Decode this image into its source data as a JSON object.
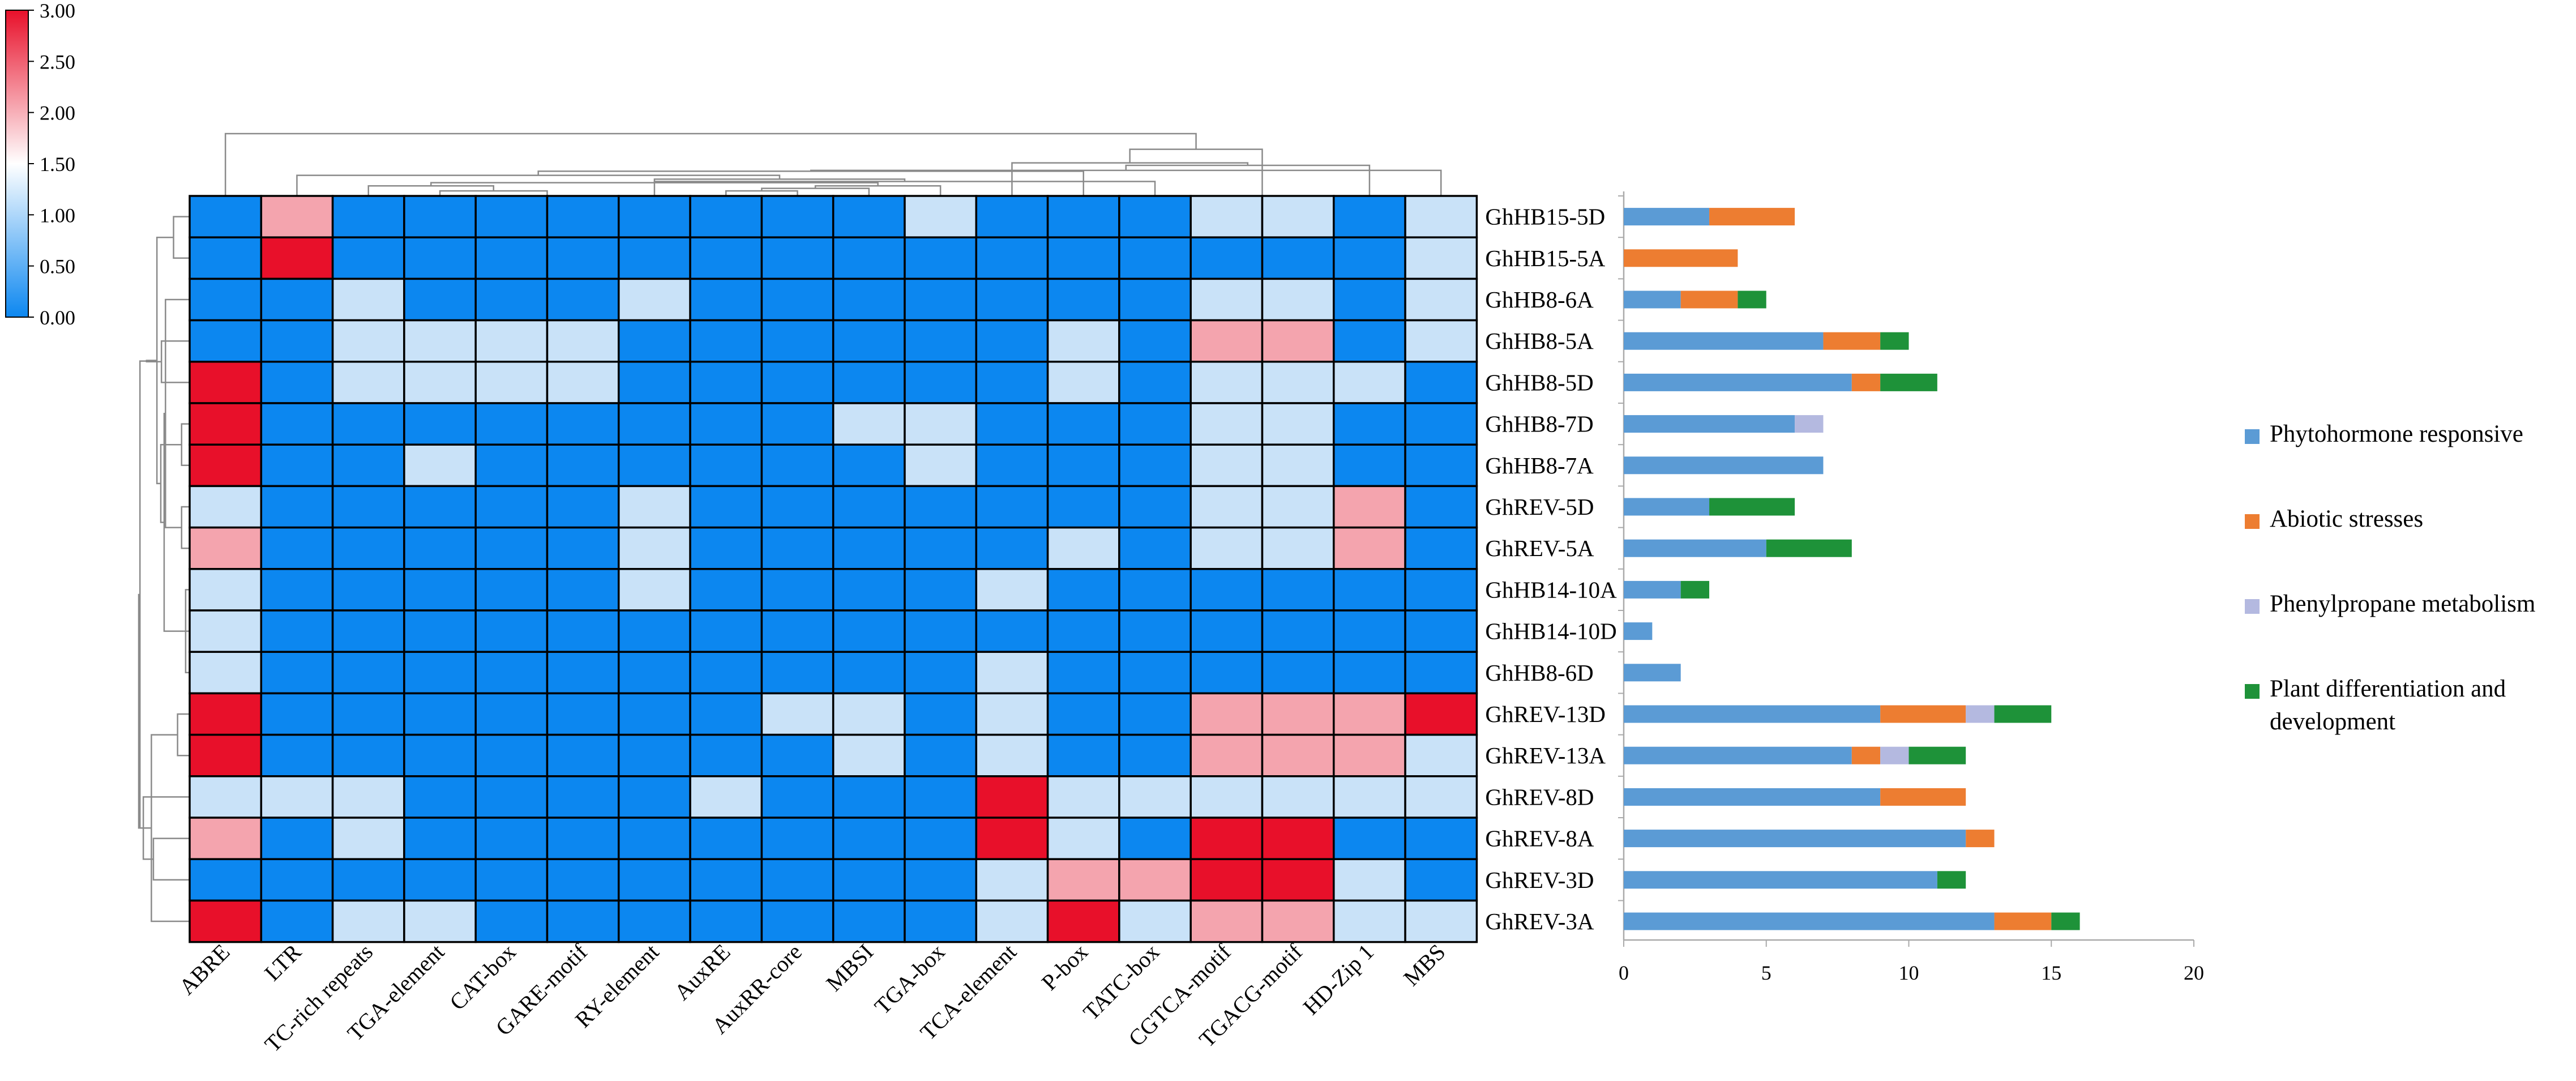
{
  "chart_data": [
    {
      "type": "heatmap",
      "title": "",
      "colorscale": {
        "min": 0,
        "max": 3,
        "ticks": [
          "3.00",
          "2.50",
          "2.00",
          "1.50",
          "1.00",
          "0.50",
          "0.00"
        ],
        "colors": [
          "#0c87f0",
          "#ffffff",
          "#e8102a"
        ]
      },
      "columns": [
        "ABRE",
        "LTR",
        "TC-rich repeats",
        "TGA-element",
        "CAT-box",
        "GARE-motif",
        "RY-element",
        "AuxRE",
        "AuxRR-core",
        "MBSI",
        "TGA-box",
        "TCA-element",
        "P-box",
        "TATC-box",
        "CGTCA-motif",
        "TGACG-motif",
        "HD-Zip 1",
        "MBS"
      ],
      "rows": [
        "GhHB15-5D",
        "GhHB15-5A",
        "GhHB8-6A",
        "GhHB8-5A",
        "GhHB8-5D",
        "GhHB8-7D",
        "GhHB8-7A",
        "GhREV-5D",
        "GhREV-5A",
        "GhHB14-10A",
        "GhHB14-10D",
        "GhHB8-6D",
        "GhREV-13D",
        "GhREV-13A",
        "GhREV-8D",
        "GhREV-8A",
        "GhREV-3D",
        "GhREV-3A"
      ],
      "values": [
        [
          0,
          2,
          0,
          0,
          0,
          0,
          0,
          0,
          0,
          0,
          1,
          0,
          0,
          0,
          1,
          1,
          0,
          1
        ],
        [
          0,
          3,
          0,
          0,
          0,
          0,
          0,
          0,
          0,
          0,
          0,
          0,
          0,
          0,
          0,
          0,
          0,
          1
        ],
        [
          0,
          0,
          1,
          0,
          0,
          0,
          1,
          0,
          0,
          0,
          0,
          0,
          0,
          0,
          1,
          1,
          0,
          1
        ],
        [
          0,
          0,
          1,
          1,
          1,
          1,
          0,
          0,
          0,
          0,
          0,
          0,
          1,
          0,
          2,
          2,
          0,
          1
        ],
        [
          3,
          0,
          1,
          1,
          1,
          1,
          0,
          0,
          0,
          0,
          0,
          0,
          1,
          0,
          1,
          1,
          1,
          0
        ],
        [
          3,
          0,
          0,
          0,
          0,
          0,
          0,
          0,
          0,
          1,
          1,
          0,
          0,
          0,
          1,
          1,
          0,
          0
        ],
        [
          3,
          0,
          0,
          1,
          0,
          0,
          0,
          0,
          0,
          0,
          1,
          0,
          0,
          0,
          1,
          1,
          0,
          0
        ],
        [
          1,
          0,
          0,
          0,
          0,
          0,
          1,
          0,
          0,
          0,
          0,
          0,
          0,
          0,
          1,
          1,
          2,
          0
        ],
        [
          2,
          0,
          0,
          0,
          0,
          0,
          1,
          0,
          0,
          0,
          0,
          0,
          1,
          0,
          1,
          1,
          2,
          0
        ],
        [
          1,
          0,
          0,
          0,
          0,
          0,
          1,
          0,
          0,
          0,
          0,
          1,
          0,
          0,
          0,
          0,
          0,
          0
        ],
        [
          1,
          0,
          0,
          0,
          0,
          0,
          0,
          0,
          0,
          0,
          0,
          0,
          0,
          0,
          0,
          0,
          0,
          0
        ],
        [
          1,
          0,
          0,
          0,
          0,
          0,
          0,
          0,
          0,
          0,
          0,
          1,
          0,
          0,
          0,
          0,
          0,
          0
        ],
        [
          3,
          0,
          0,
          0,
          0,
          0,
          0,
          0,
          1,
          1,
          0,
          1,
          0,
          0,
          2,
          2,
          2,
          3
        ],
        [
          3,
          0,
          0,
          0,
          0,
          0,
          0,
          0,
          0,
          1,
          0,
          1,
          0,
          0,
          2,
          2,
          2,
          1
        ],
        [
          1,
          1,
          1,
          0,
          0,
          0,
          0,
          1,
          0,
          0,
          0,
          3,
          1,
          1,
          1,
          1,
          1,
          1
        ],
        [
          2,
          0,
          1,
          0,
          0,
          0,
          0,
          0,
          0,
          0,
          0,
          3,
          1,
          0,
          3,
          3,
          0,
          0
        ],
        [
          0,
          0,
          0,
          0,
          0,
          0,
          0,
          0,
          0,
          0,
          0,
          1,
          2,
          2,
          3,
          3,
          1,
          0
        ],
        [
          3,
          0,
          1,
          1,
          0,
          0,
          0,
          0,
          0,
          0,
          0,
          1,
          3,
          1,
          2,
          2,
          1,
          1
        ]
      ]
    },
    {
      "type": "bar",
      "orientation": "horizontal",
      "stacked": true,
      "categories": [
        "GhHB15-5D",
        "GhHB15-5A",
        "GhHB8-6A",
        "GhHB8-5A",
        "GhHB8-5D",
        "GhHB8-7D",
        "GhHB8-7A",
        "GhREV-5D",
        "GhREV-5A",
        "GhHB14-10A",
        "GhHB14-10D",
        "GhHB8-6D",
        "GhREV-13D",
        "GhREV-13A",
        "GhREV-8D",
        "GhREV-8A",
        "GhREV-3D",
        "GhREV-3A"
      ],
      "series": [
        {
          "name": "Phytohormone responsive",
          "color": "#5b9bd5",
          "values": [
            3,
            0,
            2,
            7,
            8,
            6,
            7,
            3,
            5,
            2,
            1,
            2,
            9,
            8,
            9,
            12,
            11,
            13
          ]
        },
        {
          "name": "Abiotic stresses",
          "color": "#ed7d31",
          "values": [
            3,
            4,
            2,
            2,
            1,
            0,
            0,
            0,
            0,
            0,
            0,
            0,
            3,
            1,
            3,
            1,
            0,
            2
          ]
        },
        {
          "name": "Phenylpropane metabolism",
          "color": "#b4b9e0",
          "values": [
            0,
            0,
            0,
            0,
            0,
            1,
            0,
            0,
            0,
            0,
            0,
            0,
            1,
            1,
            0,
            0,
            0,
            0
          ]
        },
        {
          "name": "Plant differentiation and development",
          "color": "#1e9239",
          "values": [
            0,
            0,
            1,
            1,
            2,
            0,
            0,
            3,
            3,
            1,
            0,
            0,
            2,
            2,
            0,
            0,
            1,
            1
          ]
        }
      ],
      "xlim": [
        0,
        20
      ],
      "xticks": [
        "0",
        "5",
        "10",
        "15",
        "20"
      ],
      "legend_position": "right",
      "legend": [
        {
          "lines": [
            "Phytohormone responsive"
          ],
          "color": "#5b9bd5"
        },
        {
          "lines": [
            "Abiotic stresses"
          ],
          "color": "#ed7d31"
        },
        {
          "lines": [
            "Phenylpropane metabolism"
          ],
          "color": "#b4b9e0"
        },
        {
          "lines": [
            "Plant differentiation and",
            "development"
          ],
          "color": "#1e9239"
        }
      ]
    }
  ]
}
